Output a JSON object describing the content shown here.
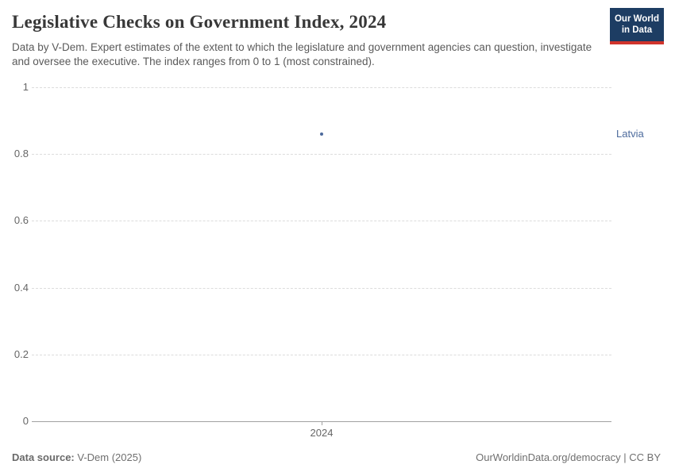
{
  "header": {
    "title": "Legislative Checks on Government Index, 2024",
    "subtitle": "Data by V-Dem. Expert estimates of the extent to which the legislature and government agencies can question, investigate and oversee the executive. The index ranges from 0 to 1 (most constrained).",
    "logo": {
      "line1": "Our World",
      "line2": "in Data",
      "bg_color": "#1d3d63",
      "accent_color": "#d0342c"
    }
  },
  "chart_data": {
    "type": "scatter",
    "title": "Legislative Checks on Government Index, 2024",
    "x": [
      2024
    ],
    "x_tick_labels": [
      "2024"
    ],
    "series": [
      {
        "name": "Latvia",
        "color": "#4c6a9c",
        "values": [
          0.86
        ]
      }
    ],
    "y_ticks": [
      1,
      0.8,
      0.6,
      0.4,
      0.2,
      0
    ],
    "ylim": [
      0,
      1
    ],
    "grid": "horizontal-dashed",
    "legend_position": "entity-label-right",
    "colors": {
      "gridline": "#dcdcdc",
      "axis_line": "#a1a1a1",
      "tick_label": "#666666"
    }
  },
  "footer": {
    "source_label": "Data source:",
    "source_value": "V-Dem (2025)",
    "credit": "OurWorldinData.org/democracy | CC BY"
  }
}
